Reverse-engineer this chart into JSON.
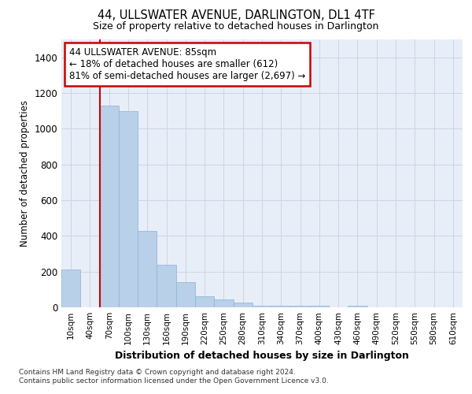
{
  "title": "44, ULLSWATER AVENUE, DARLINGTON, DL1 4TF",
  "subtitle": "Size of property relative to detached houses in Darlington",
  "xlabel": "Distribution of detached houses by size in Darlington",
  "ylabel": "Number of detached properties",
  "bar_color": "#b8d0e8",
  "bar_edge_color": "#8ab4d4",
  "categories": [
    "10sqm",
    "40sqm",
    "70sqm",
    "100sqm",
    "130sqm",
    "160sqm",
    "190sqm",
    "220sqm",
    "250sqm",
    "280sqm",
    "310sqm",
    "340sqm",
    "370sqm",
    "400sqm",
    "430sqm",
    "460sqm",
    "490sqm",
    "520sqm",
    "550sqm",
    "580sqm",
    "610sqm"
  ],
  "values": [
    210,
    0,
    1130,
    1100,
    430,
    240,
    140,
    60,
    45,
    25,
    10,
    10,
    10,
    10,
    0,
    10,
    0,
    0,
    0,
    0,
    0
  ],
  "ylim": [
    0,
    1500
  ],
  "yticks": [
    0,
    200,
    400,
    600,
    800,
    1000,
    1200,
    1400
  ],
  "annotation_text": "44 ULLSWATER AVENUE: 85sqm\n← 18% of detached houses are smaller (612)\n81% of semi-detached houses are larger (2,697) →",
  "vline_color": "#cc0000",
  "annotation_box_color": "#ffffff",
  "annotation_box_edge": "#cc0000",
  "grid_color": "#ccd5e5",
  "background_color": "#e8eef8",
  "footer_line1": "Contains HM Land Registry data © Crown copyright and database right 2024.",
  "footer_line2": "Contains public sector information licensed under the Open Government Licence v3.0."
}
